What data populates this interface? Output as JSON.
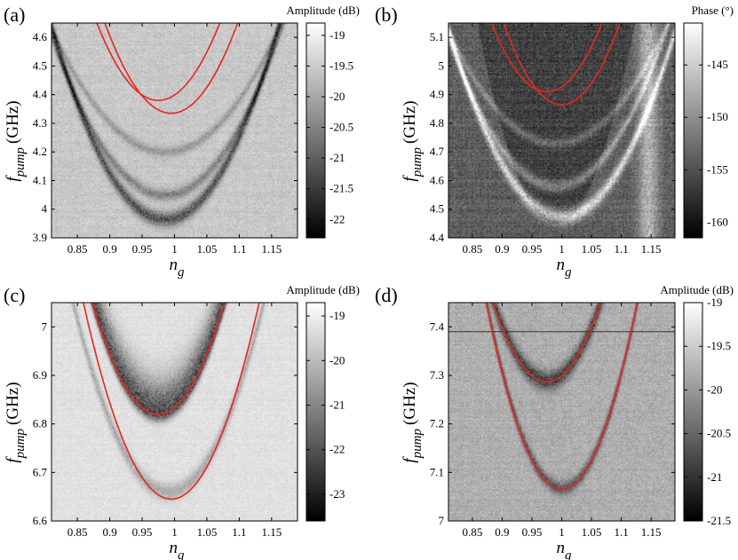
{
  "chart_data": [
    {
      "type": "heatmap",
      "panel_label": "(a)",
      "colorbar": {
        "title": "Amplitude (dB)",
        "ticks": [
          "-19",
          "-19.5",
          "-20",
          "-20.5",
          "-21",
          "-21.5",
          "-22"
        ],
        "range": [
          -22.3,
          -18.8
        ]
      },
      "xlabel": {
        "main": "n",
        "sub": "g"
      },
      "ylabel": {
        "main": "f",
        "sub": "pump",
        "unit": "(GHz)"
      },
      "xlim": [
        0.81,
        1.19
      ],
      "ylim": [
        3.9,
        4.65
      ],
      "x_ticks": [
        "0.85",
        "0.9",
        "0.95",
        "1",
        "1.05",
        "1.1",
        "1.15"
      ],
      "y_ticks": [
        "3.9",
        "4",
        "4.1",
        "4.2",
        "4.3",
        "4.4",
        "4.5",
        "4.6"
      ],
      "x_tick_values": [
        0.85,
        0.9,
        0.95,
        1,
        1.05,
        1.1,
        1.15
      ],
      "y_tick_values": [
        3.9,
        4.0,
        4.1,
        4.2,
        4.3,
        4.4,
        4.5,
        4.6
      ],
      "curves": [
        {
          "color": "#e8261c",
          "min_x": 0.975,
          "min_y": 4.38,
          "a": 30
        },
        {
          "color": "#e8261c",
          "min_x": 0.995,
          "min_y": 4.335,
          "a": 30
        }
      ],
      "dark_features": [
        {
          "min_x": 0.985,
          "min_y": 3.965,
          "a": 22,
          "w": 0.018,
          "s": 0.75
        },
        {
          "min_x": 0.985,
          "min_y": 4.05,
          "a": 18,
          "w": 0.014,
          "s": 0.45
        },
        {
          "min_x": 0.985,
          "min_y": 4.2,
          "a": 14,
          "w": 0.012,
          "s": 0.3
        }
      ],
      "style": {
        "bg": 200,
        "noise": 18,
        "stripes": 4
      }
    },
    {
      "type": "heatmap",
      "panel_label": "(b)",
      "colorbar": {
        "title": "Phase (°)",
        "ticks": [
          "-145",
          "-150",
          "-155",
          "-160"
        ],
        "range": [
          -161.5,
          -141
        ]
      },
      "xlabel": {
        "main": "n",
        "sub": "g"
      },
      "ylabel": {
        "main": "f",
        "sub": "pump",
        "unit": "(GHz)"
      },
      "xlim": [
        0.81,
        1.19
      ],
      "ylim": [
        4.4,
        5.15
      ],
      "x_ticks": [
        "0.85",
        "0.9",
        "0.95",
        "1",
        "1.05",
        "1.1",
        "1.15"
      ],
      "y_ticks": [
        "4.4",
        "4.5",
        "4.6",
        "4.7",
        "4.8",
        "4.9",
        "5",
        "5.1"
      ],
      "x_tick_values": [
        0.85,
        0.9,
        0.95,
        1,
        1.05,
        1.1,
        1.15
      ],
      "y_tick_values": [
        4.4,
        4.5,
        4.6,
        4.7,
        4.8,
        4.9,
        5.0,
        5.1
      ],
      "curves": [
        {
          "color": "#e8261c",
          "min_x": 0.975,
          "min_y": 4.91,
          "a": 28
        },
        {
          "color": "#e8261c",
          "min_x": 1.0,
          "min_y": 4.865,
          "a": 30
        }
      ],
      "light_features": [
        {
          "min_x": 1.0,
          "min_y": 4.475,
          "a": 18,
          "w": 0.018,
          "s": 0.9
        },
        {
          "min_x": 0.99,
          "min_y": 4.58,
          "a": 16,
          "w": 0.014,
          "s": 0.5
        },
        {
          "min_x": 0.99,
          "min_y": 4.73,
          "a": 12,
          "w": 0.012,
          "s": 0.35
        }
      ],
      "light_bands": [
        {
          "x": 1.145,
          "w": 0.012
        }
      ],
      "style": {
        "bg": 95,
        "noise": 30,
        "stripes": 10
      }
    },
    {
      "type": "heatmap",
      "panel_label": "(c)",
      "colorbar": {
        "title": "Amplitude (dB)",
        "ticks": [
          "-19",
          "-20",
          "-21",
          "-22",
          "-23"
        ],
        "range": [
          -23.6,
          -18.7
        ]
      },
      "xlabel": {
        "main": "n",
        "sub": "g"
      },
      "ylabel": {
        "main": "f",
        "sub": "pump",
        "unit": "(GHz)"
      },
      "xlim": [
        0.81,
        1.19
      ],
      "ylim": [
        6.6,
        7.05
      ],
      "x_ticks": [
        "0.85",
        "0.9",
        "0.95",
        "1",
        "1.05",
        "1.1",
        "1.15"
      ],
      "y_ticks": [
        "6.6",
        "6.7",
        "6.8",
        "6.9",
        "7"
      ],
      "x_tick_values": [
        0.85,
        0.9,
        0.95,
        1,
        1.05,
        1.1,
        1.15
      ],
      "y_tick_values": [
        6.6,
        6.7,
        6.8,
        6.9,
        7.0
      ],
      "curves": [
        {
          "color": "#e8261c",
          "min_x": 0.975,
          "min_y": 6.82,
          "a": 22
        },
        {
          "color": "#e8261c",
          "min_x": 0.995,
          "min_y": 6.645,
          "a": 22
        }
      ],
      "dark_features": [
        {
          "min_x": 0.975,
          "min_y": 6.82,
          "a": 22,
          "w": 0.03,
          "s": 0.95,
          "side": -1
        },
        {
          "min_x": 0.99,
          "min_y": 6.66,
          "a": 18,
          "w": 0.012,
          "s": 0.35
        }
      ],
      "style": {
        "bg": 225,
        "noise": 12,
        "stripes": 3
      }
    },
    {
      "type": "heatmap",
      "panel_label": "(d)",
      "colorbar": {
        "title": "Amplitude (dB)",
        "ticks": [
          "-19",
          "-19.5",
          "-20",
          "-20.5",
          "-21",
          "-21.5"
        ],
        "range": [
          -21.5,
          -19
        ]
      },
      "xlabel": {
        "main": "n",
        "sub": "g"
      },
      "ylabel": {
        "main": "f",
        "sub": "pump",
        "unit": "(GHz)"
      },
      "xlim": [
        0.81,
        1.19
      ],
      "ylim": [
        7.0,
        7.45
      ],
      "x_ticks": [
        "0.85",
        "0.9",
        "0.95",
        "1",
        "1.05",
        "1.1",
        "1.15"
      ],
      "y_ticks": [
        "7",
        "7.1",
        "7.2",
        "7.3",
        "7.4"
      ],
      "x_tick_values": [
        0.85,
        0.9,
        0.95,
        1,
        1.05,
        1.1,
        1.15
      ],
      "y_tick_values": [
        7.0,
        7.1,
        7.2,
        7.3,
        7.4
      ],
      "curves": [
        {
          "color": "#e8261c",
          "min_x": 0.975,
          "min_y": 7.287,
          "a": 20
        },
        {
          "color": "#e8261c",
          "min_x": 1.0,
          "min_y": 7.065,
          "a": 24
        }
      ],
      "dark_features": [
        {
          "min_x": 0.975,
          "min_y": 7.29,
          "a": 20,
          "w": 0.014,
          "s": 0.7
        },
        {
          "min_x": 1.0,
          "min_y": 7.068,
          "a": 24,
          "w": 0.01,
          "s": 0.55
        }
      ],
      "hline": {
        "y": 7.39
      },
      "style": {
        "bg": 175,
        "noise": 22,
        "stripes": 4
      }
    }
  ]
}
